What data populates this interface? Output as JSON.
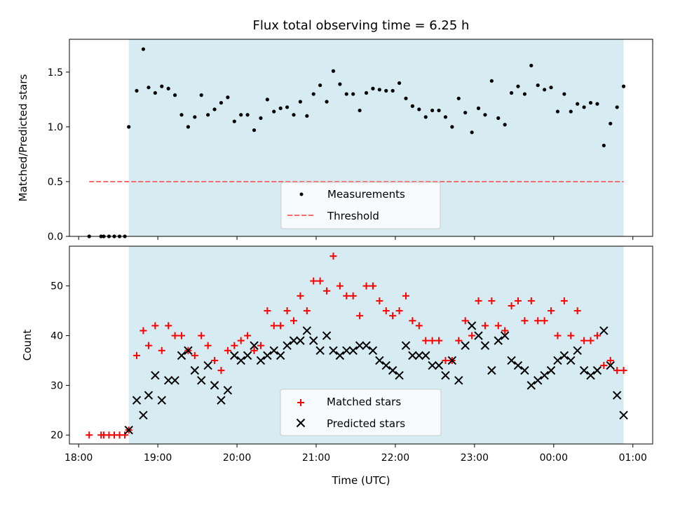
{
  "title": "Flux total observing time = 6.25 h",
  "chart_data": [
    {
      "type": "scatter",
      "panel": "top",
      "ylabel": "Matched/Predicted stars",
      "xlabel": "",
      "ylim": [
        0,
        1.8
      ],
      "yticks": [
        0.0,
        0.5,
        1.0,
        1.5
      ],
      "ytick_labels": [
        "0.0",
        "0.5",
        "1.0",
        "1.5"
      ],
      "grid": false,
      "legend_position": "lower center",
      "observing_window": [
        "18:38",
        "00:53"
      ],
      "threshold_span": [
        "18:08",
        "00:53"
      ],
      "series": [
        {
          "name": "Measurements",
          "marker": "dot",
          "color": "#000000",
          "points": [
            [
              "18:08",
              0
            ],
            [
              "18:17",
              0
            ],
            [
              "18:19",
              0
            ],
            [
              "18:23",
              0
            ],
            [
              "18:27",
              0
            ],
            [
              "18:31",
              0
            ],
            [
              "18:35",
              0
            ],
            [
              "18:38",
              1.0
            ],
            [
              "18:44",
              1.33
            ],
            [
              "18:49",
              1.71
            ],
            [
              "18:53",
              1.36
            ],
            [
              "18:58",
              1.31
            ],
            [
              "19:03",
              1.37
            ],
            [
              "19:08",
              1.35
            ],
            [
              "19:13",
              1.29
            ],
            [
              "19:18",
              1.11
            ],
            [
              "19:23",
              1.0
            ],
            [
              "19:28",
              1.09
            ],
            [
              "19:33",
              1.29
            ],
            [
              "19:38",
              1.11
            ],
            [
              "19:43",
              1.16
            ],
            [
              "19:48",
              1.22
            ],
            [
              "19:53",
              1.27
            ],
            [
              "19:58",
              1.05
            ],
            [
              "20:03",
              1.11
            ],
            [
              "20:08",
              1.11
            ],
            [
              "20:13",
              0.97
            ],
            [
              "20:18",
              1.08
            ],
            [
              "20:23",
              1.25
            ],
            [
              "20:28",
              1.14
            ],
            [
              "20:33",
              1.17
            ],
            [
              "20:38",
              1.18
            ],
            [
              "20:43",
              1.11
            ],
            [
              "20:48",
              1.23
            ],
            [
              "20:53",
              1.1
            ],
            [
              "20:58",
              1.3
            ],
            [
              "21:03",
              1.38
            ],
            [
              "21:08",
              1.23
            ],
            [
              "21:13",
              1.51
            ],
            [
              "21:18",
              1.39
            ],
            [
              "21:23",
              1.3
            ],
            [
              "21:28",
              1.3
            ],
            [
              "21:33",
              1.15
            ],
            [
              "21:38",
              1.31
            ],
            [
              "21:43",
              1.35
            ],
            [
              "21:48",
              1.34
            ],
            [
              "21:53",
              1.33
            ],
            [
              "21:58",
              1.33
            ],
            [
              "22:03",
              1.4
            ],
            [
              "22:08",
              1.26
            ],
            [
              "22:13",
              1.19
            ],
            [
              "22:18",
              1.16
            ],
            [
              "22:23",
              1.09
            ],
            [
              "22:28",
              1.15
            ],
            [
              "22:33",
              1.15
            ],
            [
              "22:38",
              1.09
            ],
            [
              "22:43",
              1.0
            ],
            [
              "22:48",
              1.26
            ],
            [
              "22:53",
              1.13
            ],
            [
              "22:58",
              0.95
            ],
            [
              "23:03",
              1.17
            ],
            [
              "23:08",
              1.11
            ],
            [
              "23:13",
              1.42
            ],
            [
              "23:18",
              1.08
            ],
            [
              "23:23",
              1.02
            ],
            [
              "23:28",
              1.31
            ],
            [
              "23:33",
              1.37
            ],
            [
              "23:38",
              1.3
            ],
            [
              "23:43",
              1.56
            ],
            [
              "23:48",
              1.38
            ],
            [
              "23:53",
              1.34
            ],
            [
              "23:58",
              1.36
            ],
            [
              "00:03",
              1.14
            ],
            [
              "00:08",
              1.3
            ],
            [
              "00:13",
              1.14
            ],
            [
              "00:18",
              1.21
            ],
            [
              "00:23",
              1.18
            ],
            [
              "00:28",
              1.22
            ],
            [
              "00:33",
              1.21
            ],
            [
              "00:38",
              0.83
            ],
            [
              "00:43",
              1.03
            ],
            [
              "00:48",
              1.18
            ],
            [
              "00:53",
              1.37
            ]
          ]
        },
        {
          "name": "Threshold",
          "line": "dashed",
          "color": "#ff6b6b",
          "value": 0.5
        }
      ]
    },
    {
      "type": "scatter",
      "panel": "bottom",
      "ylabel": "Count",
      "xlabel": "Time (UTC)",
      "ylim": [
        18.2,
        58
      ],
      "yticks": [
        20,
        30,
        40,
        50
      ],
      "ytick_labels": [
        "20",
        "30",
        "40",
        "50"
      ],
      "xticks": [
        "18:00",
        "19:00",
        "20:00",
        "21:00",
        "22:00",
        "23:00",
        "00:00",
        "01:00"
      ],
      "xlim": [
        "17:53",
        "01:15"
      ],
      "grid": false,
      "legend_position": "lower center",
      "series": [
        {
          "name": "Matched stars",
          "marker": "plus",
          "color": "#ff0000",
          "points": [
            [
              "18:08",
              20
            ],
            [
              "18:17",
              20
            ],
            [
              "18:19",
              20
            ],
            [
              "18:23",
              20
            ],
            [
              "18:27",
              20
            ],
            [
              "18:31",
              20
            ],
            [
              "18:35",
              20
            ],
            [
              "18:38",
              21
            ],
            [
              "18:44",
              36
            ],
            [
              "18:49",
              41
            ],
            [
              "18:53",
              38
            ],
            [
              "18:58",
              42
            ],
            [
              "19:03",
              37
            ],
            [
              "19:08",
              42
            ],
            [
              "19:13",
              40
            ],
            [
              "19:18",
              40
            ],
            [
              "19:23",
              37
            ],
            [
              "19:28",
              36
            ],
            [
              "19:33",
              40
            ],
            [
              "19:38",
              38
            ],
            [
              "19:43",
              35
            ],
            [
              "19:48",
              33
            ],
            [
              "19:53",
              37
            ],
            [
              "19:58",
              38
            ],
            [
              "20:03",
              39
            ],
            [
              "20:08",
              40
            ],
            [
              "20:13",
              37
            ],
            [
              "20:18",
              38
            ],
            [
              "20:23",
              45
            ],
            [
              "20:28",
              42
            ],
            [
              "20:33",
              42
            ],
            [
              "20:38",
              45
            ],
            [
              "20:43",
              43
            ],
            [
              "20:48",
              48
            ],
            [
              "20:53",
              45
            ],
            [
              "20:58",
              51
            ],
            [
              "21:03",
              51
            ],
            [
              "21:08",
              49
            ],
            [
              "21:13",
              56
            ],
            [
              "21:18",
              50
            ],
            [
              "21:23",
              48
            ],
            [
              "21:28",
              48
            ],
            [
              "21:33",
              44
            ],
            [
              "21:38",
              50
            ],
            [
              "21:43",
              50
            ],
            [
              "21:48",
              47
            ],
            [
              "21:53",
              45
            ],
            [
              "21:58",
              44
            ],
            [
              "22:03",
              45
            ],
            [
              "22:08",
              48
            ],
            [
              "22:13",
              43
            ],
            [
              "22:18",
              42
            ],
            [
              "22:23",
              39
            ],
            [
              "22:28",
              39
            ],
            [
              "22:33",
              39
            ],
            [
              "22:38",
              35
            ],
            [
              "22:43",
              35
            ],
            [
              "22:48",
              39
            ],
            [
              "22:53",
              43
            ],
            [
              "22:58",
              40
            ],
            [
              "23:03",
              47
            ],
            [
              "23:08",
              42
            ],
            [
              "23:13",
              47
            ],
            [
              "23:18",
              42
            ],
            [
              "23:23",
              41
            ],
            [
              "23:28",
              46
            ],
            [
              "23:33",
              47
            ],
            [
              "23:38",
              43
            ],
            [
              "23:43",
              47
            ],
            [
              "23:48",
              43
            ],
            [
              "23:53",
              43
            ],
            [
              "23:58",
              45
            ],
            [
              "00:03",
              40
            ],
            [
              "00:08",
              47
            ],
            [
              "00:13",
              40
            ],
            [
              "00:18",
              45
            ],
            [
              "00:23",
              39
            ],
            [
              "00:28",
              39
            ],
            [
              "00:33",
              40
            ],
            [
              "00:38",
              34
            ],
            [
              "00:43",
              35
            ],
            [
              "00:48",
              33
            ],
            [
              "00:53",
              33
            ]
          ]
        },
        {
          "name": "Predicted stars",
          "marker": "x",
          "color": "#000000",
          "points": [
            [
              "18:38",
              21
            ],
            [
              "18:44",
              27
            ],
            [
              "18:49",
              24
            ],
            [
              "18:53",
              28
            ],
            [
              "18:58",
              32
            ],
            [
              "19:03",
              27
            ],
            [
              "19:08",
              31
            ],
            [
              "19:13",
              31
            ],
            [
              "19:18",
              36
            ],
            [
              "19:23",
              37
            ],
            [
              "19:28",
              33
            ],
            [
              "19:33",
              31
            ],
            [
              "19:38",
              34
            ],
            [
              "19:43",
              30
            ],
            [
              "19:48",
              27
            ],
            [
              "19:53",
              29
            ],
            [
              "19:58",
              36
            ],
            [
              "20:03",
              35
            ],
            [
              "20:08",
              36
            ],
            [
              "20:13",
              38
            ],
            [
              "20:18",
              35
            ],
            [
              "20:23",
              36
            ],
            [
              "20:28",
              37
            ],
            [
              "20:33",
              36
            ],
            [
              "20:38",
              38
            ],
            [
              "20:43",
              39
            ],
            [
              "20:48",
              39
            ],
            [
              "20:53",
              41
            ],
            [
              "20:58",
              39
            ],
            [
              "21:03",
              37
            ],
            [
              "21:08",
              40
            ],
            [
              "21:13",
              37
            ],
            [
              "21:18",
              36
            ],
            [
              "21:23",
              37
            ],
            [
              "21:28",
              37
            ],
            [
              "21:33",
              38
            ],
            [
              "21:38",
              38
            ],
            [
              "21:43",
              37
            ],
            [
              "21:48",
              35
            ],
            [
              "21:53",
              34
            ],
            [
              "21:58",
              33
            ],
            [
              "22:03",
              32
            ],
            [
              "22:08",
              38
            ],
            [
              "22:13",
              36
            ],
            [
              "22:18",
              36
            ],
            [
              "22:23",
              36
            ],
            [
              "22:28",
              34
            ],
            [
              "22:33",
              34
            ],
            [
              "22:38",
              32
            ],
            [
              "22:43",
              35
            ],
            [
              "22:48",
              31
            ],
            [
              "22:53",
              38
            ],
            [
              "22:58",
              42
            ],
            [
              "23:03",
              40
            ],
            [
              "23:08",
              38
            ],
            [
              "23:13",
              33
            ],
            [
              "23:18",
              39
            ],
            [
              "23:23",
              40
            ],
            [
              "23:28",
              35
            ],
            [
              "23:33",
              34
            ],
            [
              "23:38",
              33
            ],
            [
              "23:43",
              30
            ],
            [
              "23:48",
              31
            ],
            [
              "23:53",
              32
            ],
            [
              "23:58",
              33
            ],
            [
              "00:03",
              35
            ],
            [
              "00:08",
              36
            ],
            [
              "00:13",
              35
            ],
            [
              "00:18",
              37
            ],
            [
              "00:23",
              33
            ],
            [
              "00:28",
              32
            ],
            [
              "00:33",
              33
            ],
            [
              "00:38",
              41
            ],
            [
              "00:43",
              34
            ],
            [
              "00:48",
              28
            ],
            [
              "00:53",
              24
            ]
          ]
        }
      ]
    }
  ],
  "colors": {
    "window_fill": "#add8e6",
    "window_opacity": 0.5,
    "matched": "#ff0000",
    "predicted": "#000000",
    "measurements": "#000000",
    "threshold": "#ff6b6b"
  }
}
